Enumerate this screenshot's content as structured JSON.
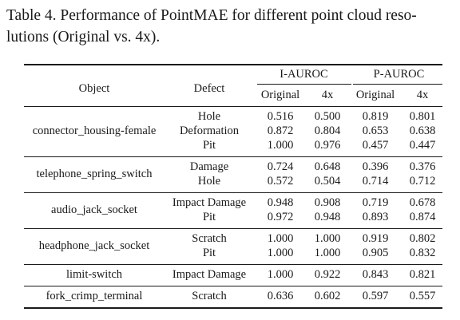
{
  "caption": {
    "line1": "Table 4. Performance of PointMAE for different point cloud reso-",
    "line2": "lutions (Original vs. 4x)."
  },
  "table": {
    "header": {
      "object": "Object",
      "defect": "Defect",
      "group1": "I-AUROC",
      "group2": "P-AUROC",
      "sub": [
        "Original",
        "4x",
        "Original",
        "4x"
      ]
    },
    "groups": [
      {
        "object": "connector_housing-female",
        "rows": [
          {
            "defect": "Hole",
            "values": [
              "0.516",
              "0.500",
              "0.819",
              "0.801"
            ]
          },
          {
            "defect": "Deformation",
            "values": [
              "0.872",
              "0.804",
              "0.653",
              "0.638"
            ]
          },
          {
            "defect": "Pit",
            "values": [
              "1.000",
              "0.976",
              "0.457",
              "0.447"
            ]
          }
        ]
      },
      {
        "object": "telephone_spring_switch",
        "rows": [
          {
            "defect": "Damage",
            "values": [
              "0.724",
              "0.648",
              "0.396",
              "0.376"
            ]
          },
          {
            "defect": "Hole",
            "values": [
              "0.572",
              "0.504",
              "0.714",
              "0.712"
            ]
          }
        ]
      },
      {
        "object": "audio_jack_socket",
        "rows": [
          {
            "defect": "Impact Damage",
            "values": [
              "0.948",
              "0.908",
              "0.719",
              "0.678"
            ]
          },
          {
            "defect": "Pit",
            "values": [
              "0.972",
              "0.948",
              "0.893",
              "0.874"
            ]
          }
        ]
      },
      {
        "object": "headphone_jack_socket",
        "rows": [
          {
            "defect": "Scratch",
            "values": [
              "1.000",
              "1.000",
              "0.919",
              "0.802"
            ]
          },
          {
            "defect": "Pit",
            "values": [
              "1.000",
              "1.000",
              "0.905",
              "0.832"
            ]
          }
        ]
      },
      {
        "object": "limit-switch",
        "rows": [
          {
            "defect": "Impact Damage",
            "values": [
              "1.000",
              "0.922",
              "0.843",
              "0.821"
            ]
          }
        ]
      },
      {
        "object": "fork_crimp_terminal",
        "rows": [
          {
            "defect": "Scratch",
            "values": [
              "0.636",
              "0.602",
              "0.597",
              "0.557"
            ]
          }
        ]
      }
    ]
  }
}
